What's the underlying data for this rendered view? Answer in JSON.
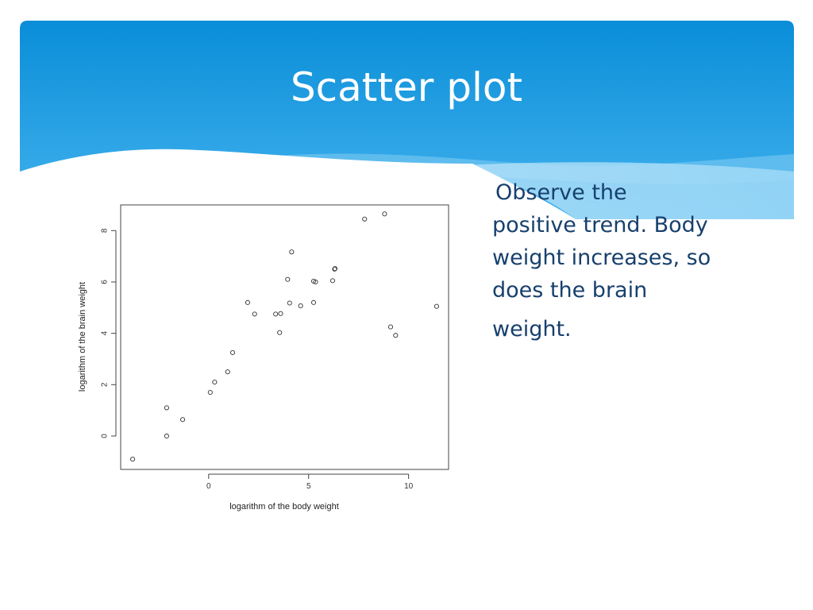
{
  "slide": {
    "title": "Scatter plot",
    "body_lines": [
      "Observe  the",
      "positive trend. Body",
      "weight increases, so",
      "does the brain",
      "weight."
    ]
  },
  "colors": {
    "banner_top": "#0a8ed8",
    "banner_bottom": "#43b2ee",
    "text": "#17406d"
  },
  "chart_data": {
    "type": "scatter",
    "title": "",
    "xlabel": "logarithm of the body weight",
    "ylabel": "logarithm of the brain weight",
    "xlim": [
      -4.4,
      12
    ],
    "ylim": [
      -1.3,
      9
    ],
    "xticks": [
      0,
      5,
      10
    ],
    "yticks": [
      0,
      2,
      4,
      6,
      8
    ],
    "grid": false,
    "marker": "open-circle",
    "points": [
      [
        -3.8,
        -0.9
      ],
      [
        -2.1,
        0.0
      ],
      [
        -2.1,
        1.1
      ],
      [
        -1.3,
        0.64
      ],
      [
        0.08,
        1.7
      ],
      [
        0.3,
        2.1
      ],
      [
        0.95,
        2.5
      ],
      [
        1.2,
        3.25
      ],
      [
        1.95,
        5.2
      ],
      [
        2.3,
        4.75
      ],
      [
        3.35,
        4.75
      ],
      [
        3.55,
        4.03
      ],
      [
        3.6,
        4.77
      ],
      [
        3.95,
        6.1
      ],
      [
        4.05,
        5.18
      ],
      [
        4.15,
        7.17
      ],
      [
        4.6,
        5.07
      ],
      [
        5.25,
        5.2
      ],
      [
        5.25,
        6.03
      ],
      [
        5.35,
        6.0
      ],
      [
        6.2,
        6.05
      ],
      [
        6.3,
        6.5
      ],
      [
        6.32,
        6.52
      ],
      [
        7.8,
        8.45
      ],
      [
        8.8,
        8.65
      ],
      [
        9.1,
        4.25
      ],
      [
        9.35,
        3.92
      ],
      [
        11.4,
        5.05
      ]
    ]
  }
}
